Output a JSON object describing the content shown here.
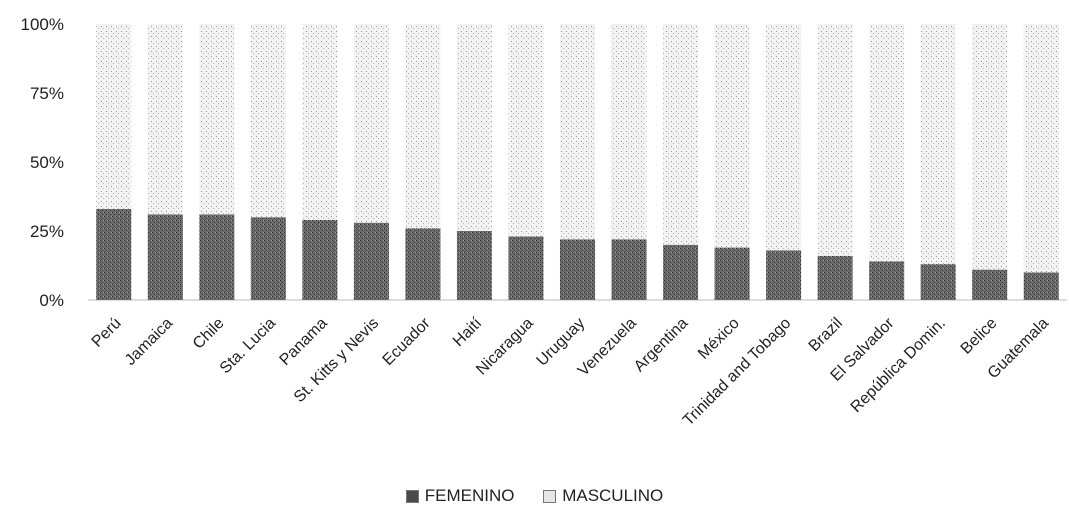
{
  "chart_data": {
    "type": "bar",
    "stacked": true,
    "percent_stacked": true,
    "categories": [
      "Perú",
      "Jamaica",
      "Chile",
      "Sta. Lucia",
      "Panama",
      "St. Kitts y Nevis",
      "Ecuador",
      "Haití",
      "Nicaragua",
      "Uruguay",
      "Venezuela",
      "Argentina",
      "México",
      "Trinidad and Tobago",
      "Brazil",
      "El Salvador",
      "República Domin.",
      "Belice",
      "Guatemala"
    ],
    "series": [
      {
        "name": "FEMENINO",
        "color": "#4a4a4a",
        "values": [
          33,
          31,
          31,
          30,
          29,
          28,
          26,
          25,
          23,
          22,
          22,
          20,
          19,
          18,
          16,
          14,
          13,
          11,
          10
        ]
      },
      {
        "name": "MASCULINO",
        "color": "#d8d8d8",
        "values": [
          67,
          69,
          69,
          70,
          71,
          72,
          74,
          75,
          77,
          78,
          78,
          80,
          81,
          82,
          84,
          86,
          87,
          89,
          90
        ]
      }
    ],
    "yticks": [
      "0%",
      "25%",
      "50%",
      "75%",
      "100%"
    ],
    "ylim": [
      0,
      100
    ],
    "grid": false,
    "legend_position": "bottom"
  }
}
